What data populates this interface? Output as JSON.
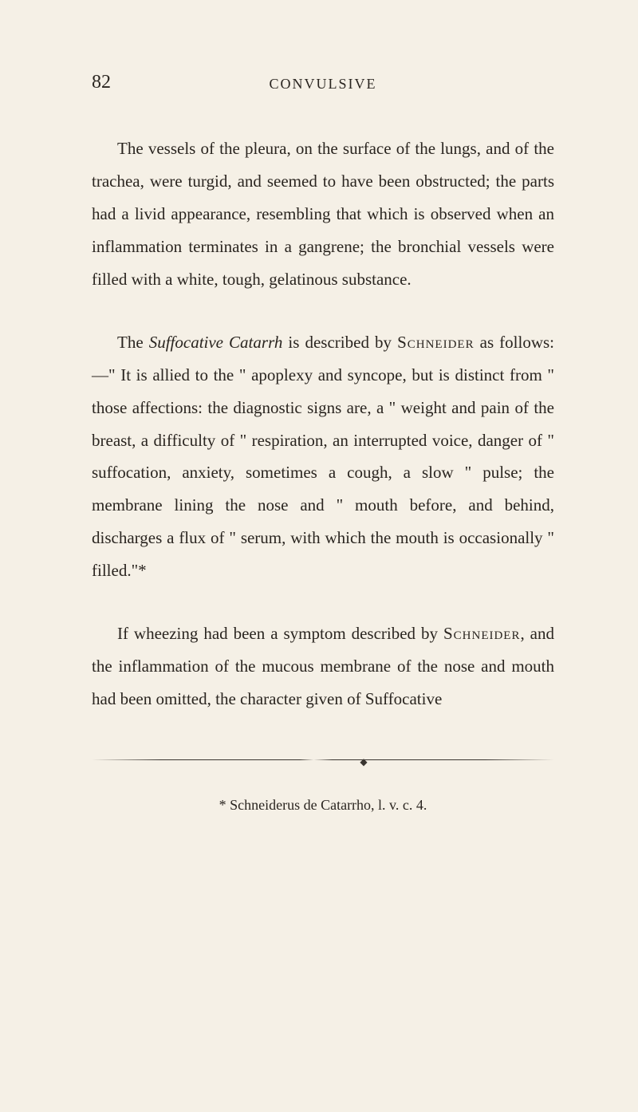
{
  "page": {
    "number": "82",
    "header": "CONVULSIVE",
    "background_color": "#f5f0e6",
    "text_color": "#2a2520"
  },
  "paragraphs": {
    "p1": {
      "text": "The vessels of the pleura, on the surface of the lungs, and of the trachea, were turgid, and seemed to have been obstructed; the parts had a livid appearance, resembling that which is observed when an inflammation terminates in a gangrene; the bronchial vessels were filled with a white, tough, gelatinous substance."
    },
    "p2": {
      "prefix": "The ",
      "italic1": "Suffocative Catarrh",
      "mid1": " is described by ",
      "smallcaps1": "Schneider",
      "mid2": " as follows:—\" It is allied to the \" apoplexy and syncope, but is distinct from \" those affections: the diagnostic signs are, a \" weight and pain of the breast, a difficulty of \" respiration, an interrupted voice, danger of \" suffocation, anxiety, sometimes a cough, a slow \" pulse; the membrane lining the nose and \" mouth before, and behind, discharges a flux of \" serum, with which the mouth is occasionally \" filled.\"*"
    },
    "p3": {
      "prefix": "If wheezing had been a symptom described by ",
      "smallcaps1": "Schneider",
      "suffix": ", and the inflammation of the mucous membrane of the nose and mouth had been omitted, the character given of Suffocative"
    }
  },
  "footnote": {
    "text": "* Schneiderus de Catarrho, l. v. c. 4."
  },
  "typography": {
    "body_fontsize": 21,
    "header_fontsize": 18,
    "footnote_fontsize": 18,
    "pagenum_fontsize": 24,
    "line_height": 1.95,
    "font_family": "Georgia, Times New Roman, serif"
  }
}
